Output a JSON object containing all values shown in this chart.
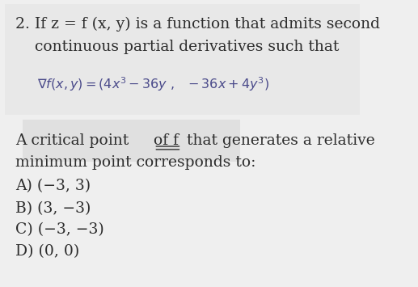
{
  "bg_color": "#efefef",
  "box_bg_color": "#e8e8e8",
  "math_box_color": "#e0e0e0",
  "text_color": "#2d2d2d",
  "math_color": "#4a4a8a",
  "figsize": [
    5.17,
    3.55
  ],
  "dpi": 100,
  "line1": "2. If z = f (x, y) is a function that admits second",
  "line2": "    continuous partial derivatives such that",
  "gradient_formula": "$\\nabla f(x,y) = (4x^3 - 36y \\ , \\ \\ -36x + 4y^3)$",
  "text_before_uff": "A critical point ",
  "text_uff": "of f",
  "text_after_uff": " that generates a relative",
  "line_min": "minimum point corresponds to:",
  "optionA": "A) (−3, 3)",
  "optionB": "B) (3, −3)",
  "optionC": "C) (−3, −3)",
  "optionD": "D) (0, 0)"
}
